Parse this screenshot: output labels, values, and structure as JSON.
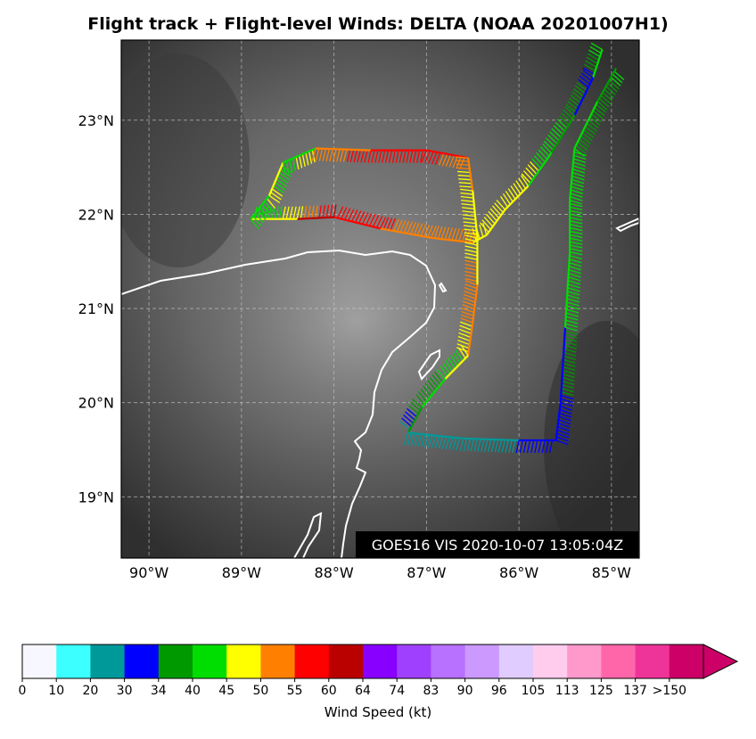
{
  "title": "Flight track + Flight-level Winds: DELTA (NOAA 20201007H1)",
  "satellite_stamp": "GOES16 VIS 2020-10-07 13:05:04Z",
  "map": {
    "lon_range": [
      -90.3,
      -84.7
    ],
    "lat_range": [
      18.35,
      23.85
    ],
    "lat_ticks": [
      {
        "value": 19,
        "label": "19°N"
      },
      {
        "value": 20,
        "label": "20°N"
      },
      {
        "value": 21,
        "label": "21°N"
      },
      {
        "value": 22,
        "label": "22°N"
      },
      {
        "value": 23,
        "label": "23°N"
      }
    ],
    "lon_ticks": [
      {
        "value": -90,
        "label": "90°W"
      },
      {
        "value": -89,
        "label": "89°W"
      },
      {
        "value": -88,
        "label": "88°W"
      },
      {
        "value": -87,
        "label": "87°W"
      },
      {
        "value": -86,
        "label": "86°W"
      },
      {
        "value": -85,
        "label": "85°W"
      }
    ],
    "grid": true,
    "coastline_color": "#ffffff",
    "flight_track": [
      {
        "lon": -85.1,
        "lat": 23.75,
        "wind": 44
      },
      {
        "lon": -85.2,
        "lat": 23.45,
        "wind": 32
      },
      {
        "lon": -85.4,
        "lat": 23.05,
        "wind": 38
      },
      {
        "lon": -85.65,
        "lat": 22.65,
        "wind": 44
      },
      {
        "lon": -85.9,
        "lat": 22.3,
        "wind": 46
      },
      {
        "lon": -86.15,
        "lat": 22.05,
        "wind": 49
      },
      {
        "lon": -86.35,
        "lat": 21.78,
        "wind": 45
      },
      {
        "lon": -86.5,
        "lat": 21.7,
        "wind": 50
      },
      {
        "lon": -86.95,
        "lat": 21.75,
        "wind": 52
      },
      {
        "lon": -87.5,
        "lat": 21.85,
        "wind": 56
      },
      {
        "lon": -88.0,
        "lat": 21.97,
        "wind": 60
      },
      {
        "lon": -88.4,
        "lat": 21.95,
        "wind": 48
      },
      {
        "lon": -88.9,
        "lat": 21.95,
        "wind": 40
      },
      {
        "lon": -88.7,
        "lat": 22.2,
        "wind": 46
      },
      {
        "lon": -88.55,
        "lat": 22.55,
        "wind": 42
      },
      {
        "lon": -88.2,
        "lat": 22.7,
        "wind": 50
      },
      {
        "lon": -87.6,
        "lat": 22.68,
        "wind": 58
      },
      {
        "lon": -87.0,
        "lat": 22.68,
        "wind": 57
      },
      {
        "lon": -86.55,
        "lat": 22.6,
        "wind": 52
      },
      {
        "lon": -86.5,
        "lat": 22.25,
        "wind": 46
      },
      {
        "lon": -86.45,
        "lat": 21.75,
        "wind": 48
      },
      {
        "lon": -86.45,
        "lat": 21.25,
        "wind": 52
      },
      {
        "lon": -86.5,
        "lat": 20.85,
        "wind": 50
      },
      {
        "lon": -86.55,
        "lat": 20.5,
        "wind": 46
      },
      {
        "lon": -86.8,
        "lat": 20.25,
        "wind": 40
      },
      {
        "lon": -87.05,
        "lat": 19.95,
        "wind": 36
      },
      {
        "lon": -87.2,
        "lat": 19.68,
        "wind": 28
      },
      {
        "lon": -86.6,
        "lat": 19.62,
        "wind": 24
      },
      {
        "lon": -86.0,
        "lat": 19.6,
        "wind": 30
      },
      {
        "lon": -85.6,
        "lat": 19.6,
        "wind": 31
      },
      {
        "lon": -85.55,
        "lat": 20.0,
        "wind": 33
      },
      {
        "lon": -85.5,
        "lat": 20.8,
        "wind": 40
      },
      {
        "lon": -85.45,
        "lat": 21.6,
        "wind": 42
      },
      {
        "lon": -85.45,
        "lat": 22.15,
        "wind": 44
      },
      {
        "lon": -85.4,
        "lat": 22.7,
        "wind": 40
      },
      {
        "lon": -85.15,
        "lat": 23.2,
        "wind": 36
      },
      {
        "lon": -84.95,
        "lat": 23.55,
        "wind": 42
      }
    ]
  },
  "colorbar": {
    "label": "Wind Speed (kt)",
    "tick_labels": [
      "0",
      "10",
      "20",
      "30",
      "34",
      "40",
      "45",
      "50",
      "55",
      "60",
      "64",
      "74",
      "83",
      "90",
      "96",
      "105",
      "113",
      "125",
      "137",
      ">150"
    ],
    "colors": [
      "#f7f7ff",
      "#3cffff",
      "#009999",
      "#0000ff",
      "#009900",
      "#00dd00",
      "#ffff00",
      "#ff8000",
      "#ff0000",
      "#bb0000",
      "#8800ff",
      "#a040ff",
      "#b870ff",
      "#cc99ff",
      "#e0ccff",
      "#ffccee",
      "#ff99cc",
      "#ff66aa",
      "#ee3399",
      "#cc0066"
    ],
    "extend_color": "#cc0066"
  }
}
